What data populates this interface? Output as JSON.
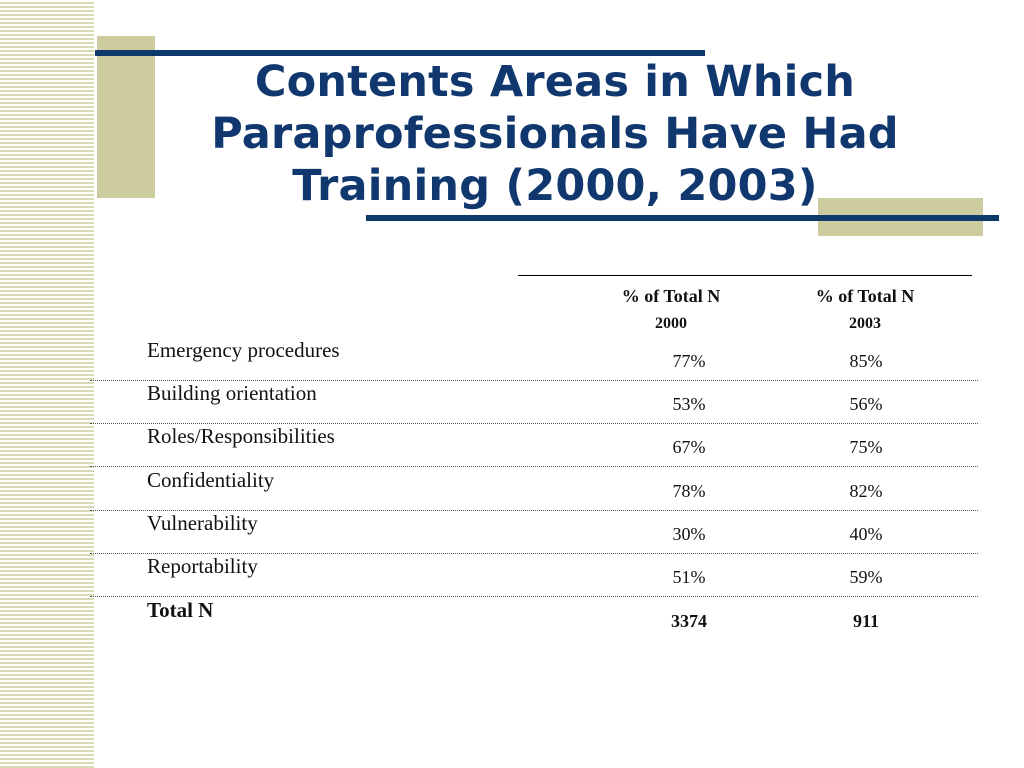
{
  "slide": {
    "title_lines": [
      "Contents Areas in Which",
      "Paraprofessionals Have Had",
      "Training (2000, 2003)"
    ]
  },
  "table": {
    "columns": [
      {
        "label": "% of  Total N",
        "year": "2000"
      },
      {
        "label": "% of Total N",
        "year": "2003"
      }
    ],
    "rows": [
      {
        "label": "Emergency procedures",
        "v2000": "77%",
        "v2003": "85%"
      },
      {
        "label": "Building orientation",
        "v2000": "53%",
        "v2003": "56%"
      },
      {
        "label": "Roles/Responsibilities",
        "v2000": "67%",
        "v2003": "75%"
      },
      {
        "label": "Confidentiality",
        "v2000": "78%",
        "v2003": "82%"
      },
      {
        "label": "Vulnerability",
        "v2000": "30%",
        "v2003": "40%"
      },
      {
        "label": "Reportability",
        "v2000": "51%",
        "v2003": "59%"
      }
    ],
    "total": {
      "label": "Total N",
      "v2000": "3374",
      "v2003": "911"
    }
  },
  "colors": {
    "title": "#11386e",
    "rule": "#0e3a6b",
    "accent_block": "#cccc9e",
    "stripe": "#d8d8b4"
  }
}
